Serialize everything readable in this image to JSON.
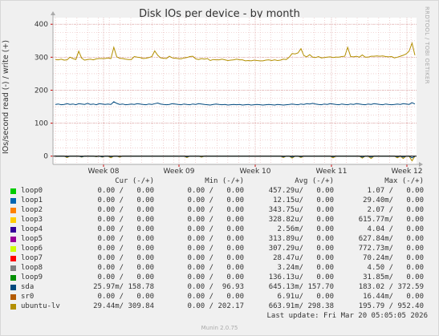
{
  "title": "Disk IOs per device - by month",
  "rrd_credit": "RRDTOOL / TOBI OETIKER",
  "footer": {
    "last_update": "Last update: Fri Mar 20 05:05:05 2026",
    "version": "Munin 2.0.75"
  },
  "legend_headers": {
    "cur": "Cur (-/+)",
    "min": "Min (-/+)",
    "avg": "Avg (-/+)",
    "max": "Max (-/+)"
  },
  "legend": [
    {
      "name": "loop0",
      "color": "#00cc00",
      "cur": "0.00 /   0.00",
      "min": "0.00 /   0.00",
      "avg": "457.29u/   0.00",
      "max": "1.07 /   0.00"
    },
    {
      "name": "loop1",
      "color": "#0066b3",
      "cur": "0.00 /   0.00",
      "min": "0.00 /   0.00",
      "avg": "12.15u/   0.00",
      "max": "29.40m/   0.00"
    },
    {
      "name": "loop2",
      "color": "#ff8000",
      "cur": "0.00 /   0.00",
      "min": "0.00 /   0.00",
      "avg": "343.75u/   0.00",
      "max": "2.07 /   0.00"
    },
    {
      "name": "loop3",
      "color": "#ffcc00",
      "cur": "0.00 /   0.00",
      "min": "0.00 /   0.00",
      "avg": "328.82u/   0.00",
      "max": "615.77m/   0.00"
    },
    {
      "name": "loop4",
      "color": "#330099",
      "cur": "0.00 /   0.00",
      "min": "0.00 /   0.00",
      "avg": "2.56m/   0.00",
      "max": "4.04 /   0.00"
    },
    {
      "name": "loop5",
      "color": "#990099",
      "cur": "0.00 /   0.00",
      "min": "0.00 /   0.00",
      "avg": "313.89u/   0.00",
      "max": "627.84m/   0.00"
    },
    {
      "name": "loop6",
      "color": "#ccff00",
      "cur": "0.00 /   0.00",
      "min": "0.00 /   0.00",
      "avg": "307.29u/   0.00",
      "max": "772.73m/   0.00"
    },
    {
      "name": "loop7",
      "color": "#ff0000",
      "cur": "0.00 /   0.00",
      "min": "0.00 /   0.00",
      "avg": "28.47u/   0.00",
      "max": "70.24m/   0.00"
    },
    {
      "name": "loop8",
      "color": "#808080",
      "cur": "0.00 /   0.00",
      "min": "0.00 /   0.00",
      "avg": "3.24m/   0.00",
      "max": "4.50 /   0.00"
    },
    {
      "name": "loop9",
      "color": "#008f00",
      "cur": "0.00 /   0.00",
      "min": "0.00 /   0.00",
      "avg": "136.13u/   0.00",
      "max": "31.85m/   0.00"
    },
    {
      "name": "sda",
      "color": "#00487d",
      "cur": "25.97m/ 158.78",
      "min": "0.00 /  96.93",
      "avg": "645.13m/ 157.70",
      "max": "183.02 / 372.59"
    },
    {
      "name": "sr0",
      "color": "#b35a00",
      "cur": "0.00 /   0.00",
      "min": "0.00 /   0.00",
      "avg": "6.91u/   0.00",
      "max": "16.44m/   0.00"
    },
    {
      "name": "ubuntu-lv",
      "color": "#b38f00",
      "cur": "29.44m/ 309.84",
      "min": "0.00 / 202.17",
      "avg": "663.91m/ 298.38",
      "max": "195.79 / 952.40"
    }
  ],
  "chart_data": {
    "type": "line",
    "title": "Disk IOs per device - by month",
    "ylabel": "IOs/second read (-) / write (+)",
    "ylim": [
      -25,
      420
    ],
    "yticks": [
      0,
      100,
      200,
      300,
      400
    ],
    "ytick_labels": [
      "0",
      "100",
      "200",
      "300",
      "400"
    ],
    "xticks": [
      "Week 08",
      "Week 09",
      "Week 10",
      "Week 11",
      "Week 12"
    ],
    "grid": true,
    "series": [
      {
        "name": "ubuntu-lv",
        "color": "#b38f00",
        "write": [
          293,
          292,
          294,
          291,
          292,
          300,
          296,
          293,
          318,
          297,
          291,
          293,
          294,
          292,
          295,
          296,
          296,
          296,
          298,
          296,
          330,
          301,
          297,
          296,
          294,
          293,
          293,
          302,
          300,
          299,
          296,
          297,
          299,
          302,
          319,
          306,
          298,
          297,
          296,
          303,
          298,
          297,
          296,
          295,
          298,
          299,
          302,
          303,
          295,
          293,
          296,
          294,
          296,
          290,
          293,
          292,
          292,
          294,
          292,
          290,
          291,
          292,
          294,
          292,
          292,
          289,
          290,
          289,
          291,
          290,
          289,
          289,
          291,
          292,
          290,
          292,
          290,
          291,
          294,
          293,
          300,
          311,
          310,
          313,
          326,
          305,
          301,
          308,
          300,
          299,
          302,
          298,
          299,
          300,
          301,
          299,
          300,
          300,
          302,
          303,
          330,
          302,
          301,
          303,
          300,
          307,
          300,
          300,
          303,
          303,
          304,
          303,
          304,
          302,
          301,
          302,
          298,
          300,
          303,
          306,
          310,
          318,
          343,
          306
        ],
        "read": [
          0,
          0,
          0,
          0,
          -4,
          0,
          0,
          0,
          0,
          -3,
          0,
          0,
          0,
          0,
          -2,
          0,
          -3,
          0,
          0,
          -5,
          0,
          0,
          -3,
          0,
          0,
          0,
          0,
          0,
          0,
          0,
          0,
          0,
          0,
          0,
          0,
          0,
          0,
          0,
          0,
          0,
          0,
          0,
          0,
          0,
          0,
          -4,
          0,
          0,
          0,
          0,
          -3,
          0,
          0,
          0,
          0,
          0,
          0,
          0,
          0,
          0,
          0,
          0,
          0,
          0,
          0,
          0,
          0,
          0,
          0,
          0,
          0,
          0,
          0,
          0,
          0,
          0,
          0,
          0,
          -4,
          0,
          0,
          -6,
          0,
          0,
          -4,
          0,
          0,
          0,
          0,
          0,
          0,
          0,
          0,
          0,
          0,
          -5,
          0,
          0,
          0,
          0,
          0,
          0,
          0,
          0,
          0,
          -6,
          0,
          0,
          -7,
          0,
          0,
          0,
          0,
          0,
          0,
          0,
          0,
          -5,
          0,
          -7,
          0,
          0,
          -14,
          0
        ]
      },
      {
        "name": "sda",
        "color": "#00487d",
        "write": [
          157,
          158,
          156,
          157,
          159,
          157,
          158,
          156,
          159,
          158,
          157,
          160,
          157,
          158,
          156,
          159,
          158,
          157,
          158,
          157,
          165,
          160,
          157,
          158,
          156,
          157,
          158,
          157,
          159,
          158,
          157,
          156,
          158,
          157,
          159,
          161,
          158,
          157,
          156,
          157,
          159,
          158,
          157,
          156,
          158,
          157,
          156,
          158,
          157,
          159,
          158,
          157,
          156,
          155,
          157,
          158,
          157,
          156,
          157,
          155,
          156,
          157,
          156,
          157,
          155,
          156,
          157,
          155,
          156,
          157,
          156,
          155,
          156,
          157,
          156,
          155,
          157,
          156,
          155,
          156,
          157,
          158,
          157,
          156,
          158,
          157,
          159,
          158,
          160,
          158,
          157,
          156,
          158,
          157,
          159,
          158,
          157,
          156,
          158,
          157,
          156,
          158,
          157,
          159,
          158,
          157,
          156,
          158,
          157,
          159,
          158,
          157,
          156,
          158,
          157,
          156,
          157,
          158,
          157,
          159,
          158,
          157,
          162,
          158
        ],
        "read": [
          0,
          0,
          0,
          0,
          -2,
          0,
          0,
          0,
          0,
          -2,
          0,
          0,
          0,
          0,
          -1,
          0,
          -2,
          0,
          0,
          -2,
          0,
          0,
          -1,
          0,
          0,
          0,
          0,
          0,
          0,
          0,
          0,
          0,
          0,
          0,
          0,
          0,
          0,
          0,
          0,
          0,
          0,
          0,
          0,
          0,
          0,
          -2,
          0,
          0,
          0,
          0,
          -1,
          0,
          0,
          0,
          0,
          0,
          0,
          0,
          0,
          0,
          0,
          0,
          0,
          0,
          0,
          0,
          0,
          0,
          0,
          0,
          0,
          0,
          0,
          0,
          0,
          0,
          0,
          0,
          -2,
          0,
          0,
          -3,
          0,
          0,
          -2,
          0,
          0,
          0,
          0,
          0,
          0,
          0,
          0,
          0,
          0,
          -2,
          0,
          0,
          0,
          0,
          0,
          0,
          0,
          0,
          0,
          -3,
          0,
          0,
          -3,
          0,
          0,
          0,
          0,
          0,
          0,
          0,
          0,
          -2,
          0,
          -3,
          0,
          0,
          -5,
          0
        ]
      }
    ]
  }
}
